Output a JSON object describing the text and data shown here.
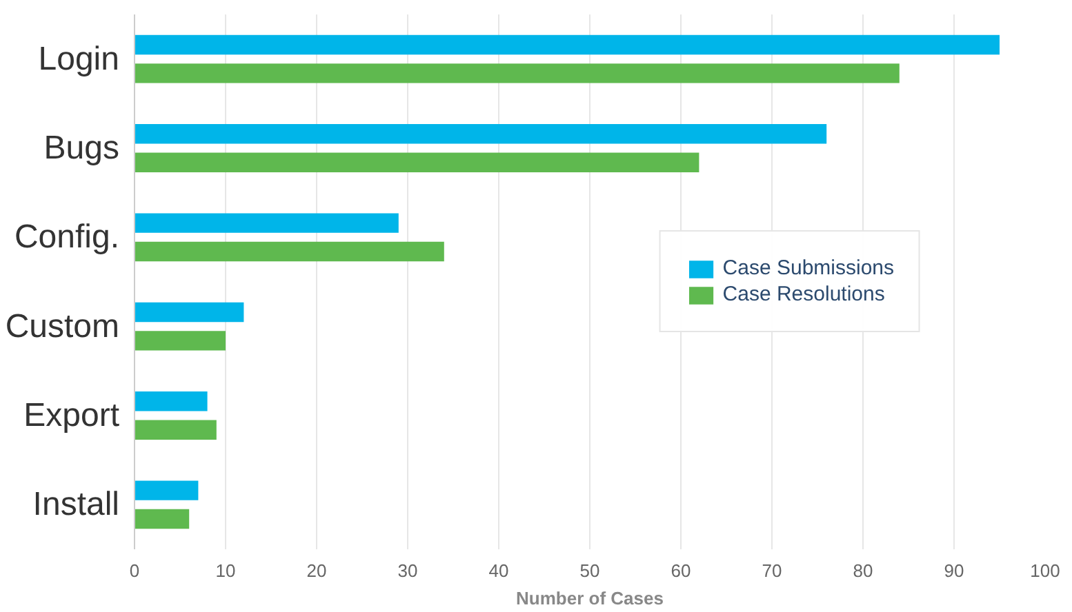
{
  "chart_data": {
    "type": "bar",
    "orientation": "horizontal",
    "xlabel": "Number of Cases",
    "categories": [
      "Login",
      "Bugs",
      "Config.",
      "Custom",
      "Export",
      "Install"
    ],
    "series": [
      {
        "name": "Case Submissions",
        "color": "#00b5e9",
        "values": [
          95,
          76,
          29,
          12,
          8,
          7
        ]
      },
      {
        "name": "Case Resolutions",
        "color": "#5fb94f",
        "values": [
          84,
          62,
          34,
          10,
          9,
          6
        ]
      }
    ],
    "xlim": [
      0,
      100
    ],
    "xticks": [
      0,
      10,
      20,
      30,
      40,
      50,
      60,
      70,
      80,
      90,
      100
    ],
    "grid": "x",
    "legend": "right"
  }
}
